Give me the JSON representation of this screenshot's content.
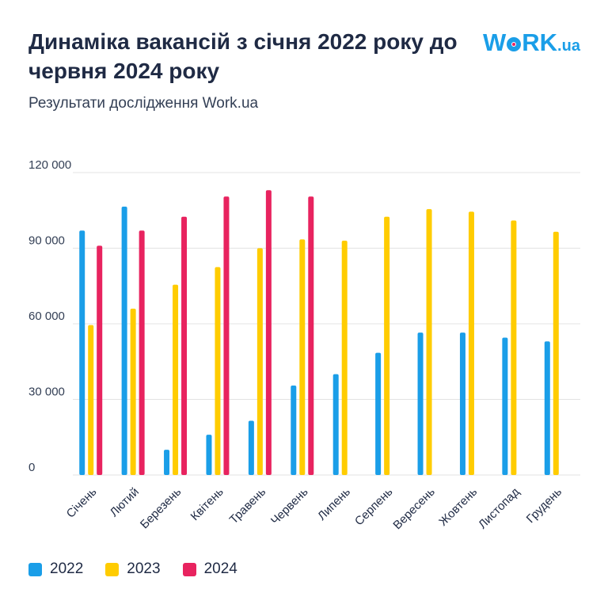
{
  "header": {
    "title": "Динаміка вакансій з січня 2022 року до червня 2024 року",
    "subtitle": "Результати дослідження Work.ua",
    "logo_main": "WORK",
    "logo_suffix": ".ua"
  },
  "colors": {
    "2022": "#1a9ee8",
    "2023": "#ffcc00",
    "2024": "#e8235f",
    "grid": "#e3e3e3",
    "text": "#1f2a44"
  },
  "chart_data": {
    "type": "bar",
    "title": "Динаміка вакансій з січня 2022 року до червня 2024 року",
    "subtitle": "Результати дослідження Work.ua",
    "xlabel": "",
    "ylabel": "",
    "ylim": [
      0,
      120000
    ],
    "yticks": [
      0,
      30000,
      60000,
      90000,
      120000
    ],
    "ytick_labels": [
      "0",
      "30 000",
      "60 000",
      "90 000",
      "120 000"
    ],
    "grid": true,
    "legend_position": "bottom-left",
    "categories": [
      "Січень",
      "Лютий",
      "Березень",
      "Квітень",
      "Травень",
      "Червень",
      "Липень",
      "Серпень",
      "Вересень",
      "Жовтень",
      "Листопад",
      "Грудень"
    ],
    "series": [
      {
        "name": "2022",
        "values": [
          97000,
          106500,
          10000,
          16000,
          21500,
          35500,
          40000,
          48500,
          56500,
          56500,
          54500,
          53000
        ]
      },
      {
        "name": "2023",
        "values": [
          59500,
          66000,
          75500,
          82500,
          90000,
          93500,
          93000,
          102500,
          105500,
          104500,
          101000,
          96500
        ]
      },
      {
        "name": "2024",
        "values": [
          91000,
          97000,
          102500,
          110500,
          113000,
          110500,
          null,
          null,
          null,
          null,
          null,
          null
        ]
      }
    ]
  }
}
